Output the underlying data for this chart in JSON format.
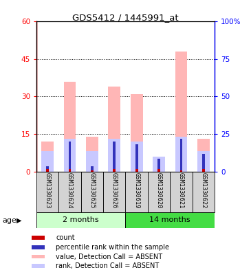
{
  "title": "GDS5412 / 1445991_at",
  "samples": [
    "GSM1330623",
    "GSM1330624",
    "GSM1330625",
    "GSM1330626",
    "GSM1330619",
    "GSM1330620",
    "GSM1330621",
    "GSM1330622"
  ],
  "groups": [
    {
      "label": "2 months",
      "indices": [
        0,
        1,
        2,
        3
      ],
      "light_color": "#CCFFCC",
      "dark_color": "#99EE99"
    },
    {
      "label": "14 months",
      "indices": [
        4,
        5,
        6,
        7
      ],
      "light_color": "#44DD44",
      "dark_color": "#22CC22"
    }
  ],
  "absent_value": [
    12.0,
    36.0,
    14.0,
    34.0,
    31.0,
    4.0,
    48.0,
    13.0
  ],
  "absent_rank": [
    8.0,
    13.0,
    8.0,
    13.0,
    12.0,
    6.0,
    14.0,
    8.0
  ],
  "count_value": [
    1.0,
    1.0,
    0.5,
    1.0,
    1.0,
    1.0,
    0.5,
    1.0
  ],
  "percentile_value": [
    2.0,
    12.0,
    2.0,
    12.0,
    11.0,
    5.0,
    13.0,
    7.0
  ],
  "ylim_left": [
    0,
    60
  ],
  "ylim_right": [
    0,
    100
  ],
  "yticks_left": [
    0,
    15,
    30,
    45,
    60
  ],
  "yticks_right": [
    0,
    25,
    50,
    75,
    100
  ],
  "yticklabels_left": [
    "0",
    "15",
    "30",
    "45",
    "60"
  ],
  "yticklabels_right": [
    "0",
    "25",
    "50",
    "75",
    "100%"
  ],
  "absent_bar_color": "#FFB6B6",
  "absent_rank_color": "#C8C8FF",
  "count_color": "#CC0000",
  "percentile_color": "#3333BB",
  "bar_width": 0.55,
  "thin_bar_width": 0.12,
  "age_label": "age",
  "legend_items": [
    {
      "label": "count",
      "color": "#CC0000"
    },
    {
      "label": "percentile rank within the sample",
      "color": "#3333BB"
    },
    {
      "label": "value, Detection Call = ABSENT",
      "color": "#FFB6B6"
    },
    {
      "label": "rank, Detection Call = ABSENT",
      "color": "#C8C8FF"
    }
  ]
}
